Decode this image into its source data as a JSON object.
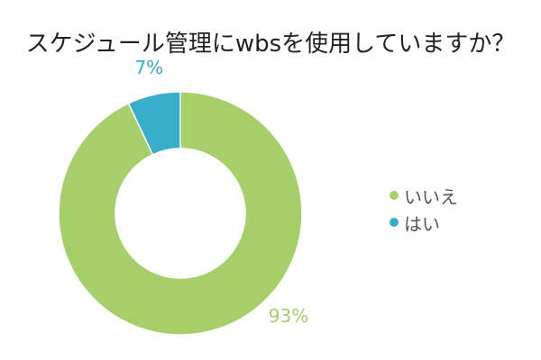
{
  "chart_data": {
    "type": "pie",
    "title": "スケジュール管理にwbsを使用していますか？",
    "categories": [
      "いいえ",
      "はい"
    ],
    "values": [
      93,
      7
    ],
    "value_labels": [
      "93%",
      "7%"
    ],
    "colors": [
      "#a6cf6a",
      "#36adc9"
    ],
    "donut": true,
    "legend_position": "right"
  }
}
